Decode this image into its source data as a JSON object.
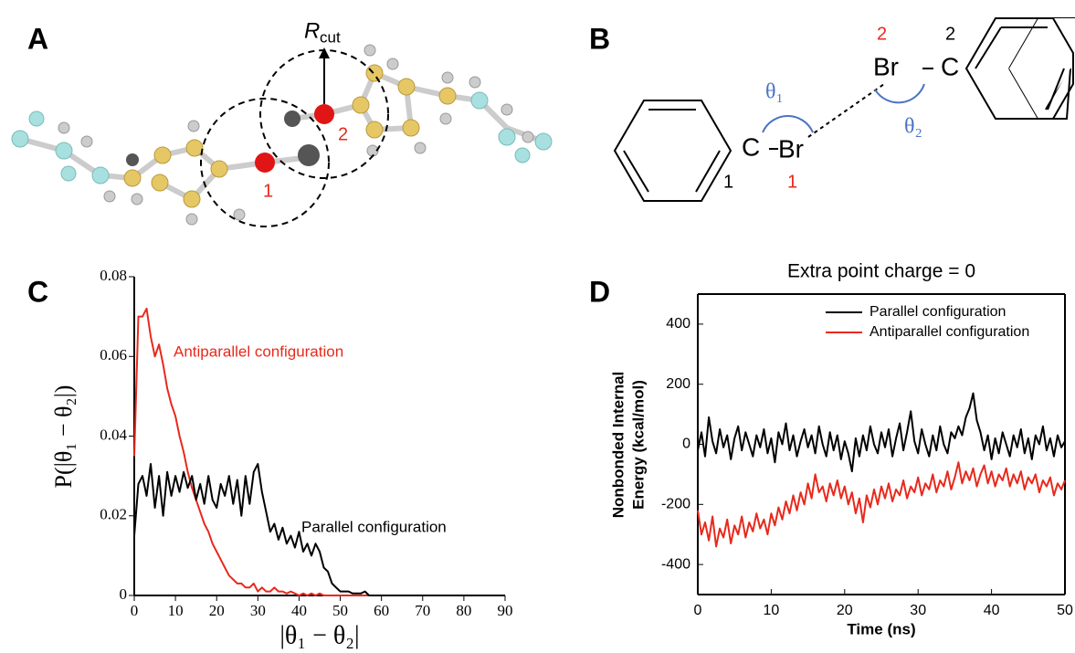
{
  "figure": {
    "panels": [
      "A",
      "B",
      "C",
      "D"
    ],
    "molecule": {
      "cutoff": [
        "R",
        "cut"
      ],
      "labels": [
        "1",
        "2"
      ]
    },
    "diagram": {
      "atoms": [
        "C",
        "Br",
        "Br",
        "C"
      ],
      "numbers": [
        "1",
        "1",
        "2",
        "2"
      ],
      "angles": [
        "θ₁",
        "θ₂"
      ]
    }
  },
  "chart_data": [
    {
      "type": "line",
      "ylabel": "P(|θ₁ − θ₂|)",
      "xlabel": "|θ₁ − θ₂|",
      "x": [
        0,
        1,
        2,
        3,
        4,
        5,
        6,
        7,
        8,
        9,
        10,
        11,
        12,
        13,
        14,
        15,
        16,
        17,
        18,
        19,
        20,
        21,
        22,
        23,
        24,
        25,
        26,
        27,
        28,
        29,
        30,
        31,
        32,
        33,
        34,
        35,
        36,
        37,
        38,
        39,
        40,
        41,
        42,
        43,
        44,
        45,
        46,
        47,
        48,
        49,
        50,
        51,
        52,
        53,
        54,
        55,
        56,
        57,
        58,
        59,
        60,
        70,
        80,
        90
      ],
      "series": [
        {
          "name": "Antiparallel configuration",
          "color": "#e8291c",
          "values": [
            0.035,
            0.07,
            0.07,
            0.072,
            0.065,
            0.06,
            0.063,
            0.058,
            0.052,
            0.048,
            0.045,
            0.04,
            0.036,
            0.031,
            0.027,
            0.024,
            0.021,
            0.018,
            0.016,
            0.013,
            0.011,
            0.009,
            0.007,
            0.005,
            0.004,
            0.003,
            0.003,
            0.002,
            0.002,
            0.003,
            0.001,
            0.002,
            0.001,
            0.001,
            0.002,
            0.001,
            0.001,
            0.0005,
            0.001,
            0.0005,
            0,
            0.0005,
            0,
            0.0005,
            0,
            0.0005,
            0,
            0,
            0,
            0,
            0,
            0,
            0,
            0,
            0,
            0,
            0,
            0,
            0,
            0,
            0,
            0,
            0,
            0
          ]
        },
        {
          "name": "Parallel configuration",
          "color": "#000000",
          "values": [
            0.015,
            0.028,
            0.03,
            0.025,
            0.033,
            0.022,
            0.03,
            0.02,
            0.031,
            0.025,
            0.03,
            0.026,
            0.031,
            0.027,
            0.03,
            0.024,
            0.028,
            0.023,
            0.03,
            0.024,
            0.022,
            0.028,
            0.025,
            0.03,
            0.023,
            0.029,
            0.02,
            0.03,
            0.023,
            0.031,
            0.033,
            0.026,
            0.021,
            0.016,
            0.018,
            0.014,
            0.017,
            0.013,
            0.015,
            0.012,
            0.016,
            0.011,
            0.013,
            0.01,
            0.013,
            0.011,
            0.007,
            0.006,
            0.003,
            0.002,
            0.001,
            0.001,
            0.001,
            0.0005,
            0.0005,
            0.0005,
            0.001,
            0,
            0,
            0,
            0,
            0,
            0,
            0
          ]
        }
      ],
      "xlim": [
        0,
        90
      ],
      "ylim": [
        0,
        0.08
      ],
      "xticks": [
        0,
        10,
        20,
        30,
        40,
        50,
        60,
        70,
        80,
        90
      ],
      "yticks": [
        0,
        0.02,
        0.04,
        0.06,
        0.08
      ]
    },
    {
      "type": "line",
      "title": "Extra point charge = 0",
      "ylabel": [
        "Nonbonded Internal",
        "Energy (kcal/mol)"
      ],
      "xlabel": "Time (ns)",
      "legend": "upper right",
      "frame": true,
      "x": [
        0,
        0.5,
        1,
        1.5,
        2,
        2.5,
        3,
        3.5,
        4,
        4.5,
        5,
        5.5,
        6,
        6.5,
        7,
        7.5,
        8,
        8.5,
        9,
        9.5,
        10,
        10.5,
        11,
        11.5,
        12,
        12.5,
        13,
        13.5,
        14,
        14.5,
        15,
        15.5,
        16,
        16.5,
        17,
        17.5,
        18,
        18.5,
        19,
        19.5,
        20,
        20.5,
        21,
        21.5,
        22,
        22.5,
        23,
        23.5,
        24,
        24.5,
        25,
        25.5,
        26,
        26.5,
        27,
        27.5,
        28,
        28.5,
        29,
        29.5,
        30,
        30.5,
        31,
        31.5,
        32,
        32.5,
        33,
        33.5,
        34,
        34.5,
        35,
        35.5,
        36,
        36.5,
        37,
        37.5,
        38,
        38.5,
        39,
        39.5,
        40,
        40.5,
        41,
        41.5,
        42,
        42.5,
        43,
        43.5,
        44,
        44.5,
        45,
        45.5,
        46,
        46.5,
        47,
        47.5,
        48,
        48.5,
        49,
        49.5,
        50
      ],
      "series": [
        {
          "name": "Parallel configuration",
          "color": "#000000",
          "values": [
            -20,
            40,
            -40,
            90,
            10,
            -30,
            50,
            -10,
            30,
            -50,
            20,
            60,
            -20,
            40,
            0,
            -40,
            30,
            -10,
            50,
            -30,
            20,
            -60,
            40,
            0,
            70,
            -20,
            30,
            -40,
            10,
            50,
            -10,
            30,
            -30,
            60,
            0,
            -40,
            40,
            -20,
            30,
            -50,
            10,
            -30,
            -90,
            20,
            -40,
            30,
            -20,
            60,
            0,
            -30,
            40,
            -10,
            50,
            -40,
            20,
            70,
            -20,
            40,
            110,
            10,
            -30,
            50,
            0,
            -40,
            30,
            -20,
            60,
            0,
            -30,
            40,
            20,
            60,
            30,
            90,
            120,
            170,
            80,
            40,
            -20,
            30,
            -50,
            20,
            -30,
            40,
            0,
            -40,
            30,
            -10,
            50,
            -30,
            20,
            -50,
            30,
            0,
            60,
            -20,
            20,
            -40,
            30,
            -10,
            10
          ]
        },
        {
          "name": "Antiparallel configuration",
          "color": "#e8291c",
          "values": [
            -220,
            -300,
            -260,
            -320,
            -240,
            -340,
            -280,
            -310,
            -250,
            -330,
            -270,
            -300,
            -240,
            -310,
            -260,
            -290,
            -230,
            -280,
            -250,
            -300,
            -230,
            -270,
            -210,
            -250,
            -190,
            -230,
            -170,
            -220,
            -160,
            -200,
            -130,
            -180,
            -100,
            -160,
            -140,
            -190,
            -130,
            -170,
            -120,
            -180,
            -140,
            -200,
            -160,
            -230,
            -180,
            -260,
            -170,
            -210,
            -150,
            -200,
            -140,
            -180,
            -130,
            -190,
            -150,
            -170,
            -120,
            -180,
            -140,
            -160,
            -110,
            -170,
            -130,
            -150,
            -100,
            -160,
            -120,
            -140,
            -90,
            -150,
            -110,
            -60,
            -130,
            -90,
            -120,
            -80,
            -140,
            -100,
            -70,
            -130,
            -90,
            -140,
            -100,
            -120,
            -80,
            -140,
            -100,
            -130,
            -90,
            -150,
            -110,
            -130,
            -100,
            -160,
            -120,
            -140,
            -110,
            -170,
            -130,
            -150,
            -120
          ]
        }
      ],
      "xlim": [
        0,
        50
      ],
      "ylim": [
        -500,
        500
      ],
      "xticks": [
        0,
        10,
        20,
        30,
        40,
        50
      ],
      "yticks": [
        -400,
        -200,
        0,
        200,
        400
      ]
    }
  ]
}
